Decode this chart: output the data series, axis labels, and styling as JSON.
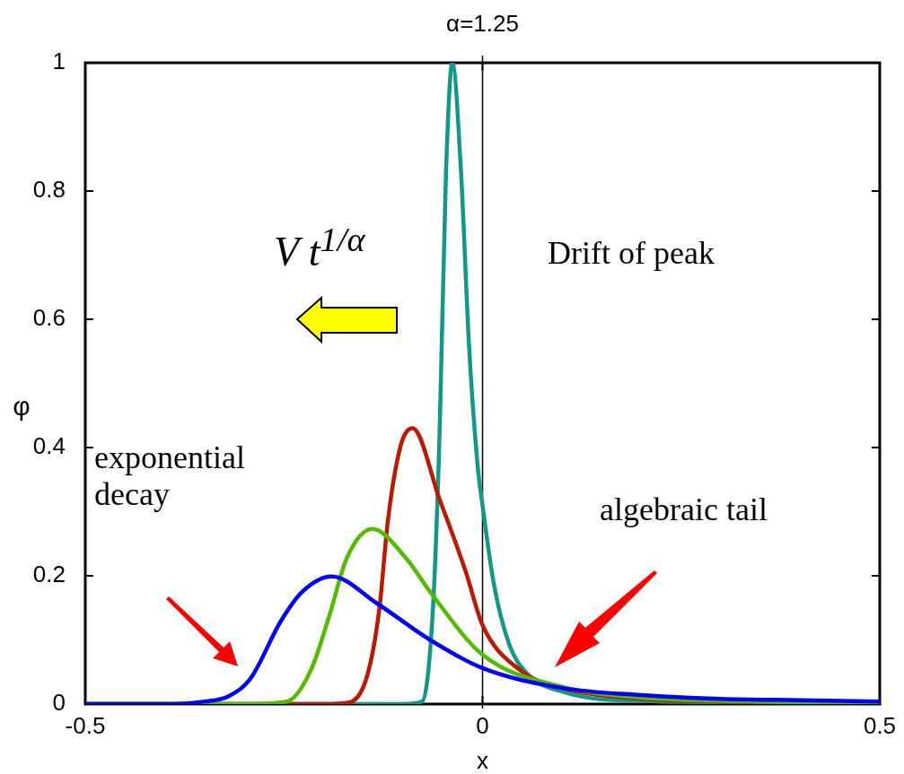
{
  "chart_data": {
    "type": "line",
    "title": "α=1.25",
    "xlabel": "x",
    "ylabel": "φ",
    "xlim": [
      -0.5,
      0.5
    ],
    "xticks": [
      -0.5,
      0,
      0.5
    ],
    "ylim": [
      0,
      1
    ],
    "yticks": [
      0,
      0.2,
      0.4,
      0.6,
      0.8,
      1
    ],
    "grid": false,
    "legend": false,
    "marker": "none",
    "line_style": "solid",
    "ref_lines": [
      {
        "axis": "x",
        "value": 0,
        "color": "#000000"
      }
    ],
    "annotations": [
      "V t$^{1/α}$",
      "Drift of peak",
      "exponential decay",
      "algebraic tail"
    ],
    "series": [
      {
        "color": "#0000ff",
        "x": [
          -0.5,
          -0.4,
          -0.35,
          -0.32,
          -0.292,
          -0.254,
          -0.227,
          -0.19,
          -0.133,
          -0.066,
          0,
          0.1,
          0.2,
          0.3,
          0.4,
          0.5
        ],
        "values": [
          0,
          0,
          0.004,
          0.012,
          0.04,
          0.129,
          0.175,
          0.199,
          0.157,
          0.1,
          0.056,
          0.025,
          0.014,
          0.008,
          0.006,
          0.004
        ]
      },
      {
        "color": "#55bb00",
        "x": [
          -0.5,
          -0.3,
          -0.246,
          -0.216,
          -0.193,
          -0.171,
          -0.139,
          -0.096,
          -0.066,
          0,
          0.1,
          0.2,
          0.3,
          0.5
        ],
        "values": [
          0,
          0,
          0.004,
          0.053,
          0.137,
          0.227,
          0.273,
          0.227,
          0.175,
          0.077,
          0.027,
          0.01,
          0.005,
          0.002
        ]
      },
      {
        "color": "#bb1a00",
        "x": [
          -0.5,
          -0.2,
          -0.167,
          -0.145,
          -0.13,
          -0.119,
          -0.103,
          -0.088,
          -0.054,
          -0.021,
          0,
          0.047,
          0.1,
          0.2,
          0.3,
          0.5
        ],
        "values": [
          0,
          0,
          0.003,
          0.045,
          0.147,
          0.287,
          0.403,
          0.43,
          0.319,
          0.206,
          0.123,
          0.053,
          0.025,
          0.008,
          0.004,
          0.001
        ]
      },
      {
        "color": "#119988",
        "x": [
          -0.5,
          -0.1,
          -0.076,
          -0.062,
          -0.054,
          -0.046,
          -0.038,
          -0.027,
          -0.017,
          -0.006,
          0,
          0.014,
          0.033,
          0.055,
          0.107,
          0.2,
          0.5
        ],
        "values": [
          0,
          0,
          0.004,
          0.158,
          0.425,
          0.828,
          1,
          0.828,
          0.559,
          0.37,
          0.31,
          0.189,
          0.095,
          0.049,
          0.017,
          0.005,
          0.001
        ]
      }
    ]
  }
}
